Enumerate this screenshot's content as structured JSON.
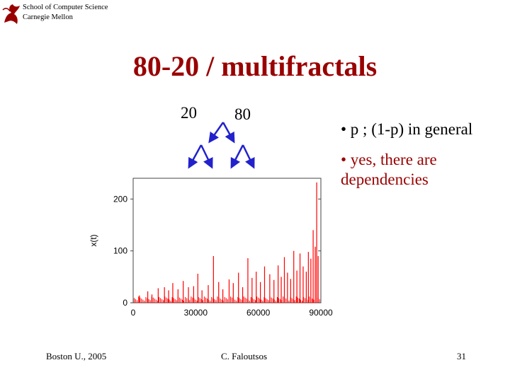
{
  "header": {
    "org_line1": "School of Computer Science",
    "org_line2": "Carnegie Mellon",
    "logo_icon": "griffin-logo-icon"
  },
  "title": "80-20 / multifractals",
  "split": {
    "left_label": "20",
    "right_label": "80",
    "arrow_color": "#2222cc"
  },
  "bullets": [
    "• p ; (1-p) in general",
    "• yes, there are",
    "dependencies"
  ],
  "colors": {
    "title": "#990000",
    "bullet_highlight": "#990000",
    "series": "#ff0000"
  },
  "chart_data": {
    "type": "bar",
    "xlabel": "",
    "ylabel": "x(t)",
    "xlim": [
      0,
      90000
    ],
    "ylim": [
      0,
      240
    ],
    "x_ticks": [
      "0",
      "30000",
      "60000",
      "90000"
    ],
    "y_ticks": [
      "0",
      "100",
      "200"
    ],
    "grid": false,
    "series_color": "#ff0000",
    "spikes": [
      {
        "x": 3000,
        "y": 14
      },
      {
        "x": 7000,
        "y": 22
      },
      {
        "x": 9000,
        "y": 16
      },
      {
        "x": 12000,
        "y": 28
      },
      {
        "x": 15000,
        "y": 30
      },
      {
        "x": 17000,
        "y": 24
      },
      {
        "x": 19000,
        "y": 38
      },
      {
        "x": 21500,
        "y": 26
      },
      {
        "x": 24000,
        "y": 42
      },
      {
        "x": 26500,
        "y": 30
      },
      {
        "x": 29000,
        "y": 32
      },
      {
        "x": 31000,
        "y": 56
      },
      {
        "x": 33000,
        "y": 24
      },
      {
        "x": 36000,
        "y": 34
      },
      {
        "x": 38500,
        "y": 90
      },
      {
        "x": 41000,
        "y": 40
      },
      {
        "x": 43000,
        "y": 26
      },
      {
        "x": 46000,
        "y": 45
      },
      {
        "x": 48000,
        "y": 38
      },
      {
        "x": 50500,
        "y": 58
      },
      {
        "x": 52500,
        "y": 30
      },
      {
        "x": 55000,
        "y": 86
      },
      {
        "x": 57000,
        "y": 48
      },
      {
        "x": 59000,
        "y": 60
      },
      {
        "x": 61000,
        "y": 40
      },
      {
        "x": 63000,
        "y": 70
      },
      {
        "x": 65500,
        "y": 55
      },
      {
        "x": 67500,
        "y": 44
      },
      {
        "x": 69500,
        "y": 72
      },
      {
        "x": 71000,
        "y": 50
      },
      {
        "x": 72500,
        "y": 88
      },
      {
        "x": 74000,
        "y": 58
      },
      {
        "x": 75500,
        "y": 46
      },
      {
        "x": 77000,
        "y": 100
      },
      {
        "x": 78500,
        "y": 62
      },
      {
        "x": 80000,
        "y": 95
      },
      {
        "x": 81500,
        "y": 70
      },
      {
        "x": 83000,
        "y": 60
      },
      {
        "x": 84000,
        "y": 98
      },
      {
        "x": 85200,
        "y": 85
      },
      {
        "x": 86300,
        "y": 140
      },
      {
        "x": 87300,
        "y": 108
      },
      {
        "x": 88000,
        "y": 232
      },
      {
        "x": 88700,
        "y": 90
      }
    ]
  },
  "footer": {
    "left": "Boston U., 2005",
    "center": "C. Faloutsos",
    "page": "31"
  }
}
